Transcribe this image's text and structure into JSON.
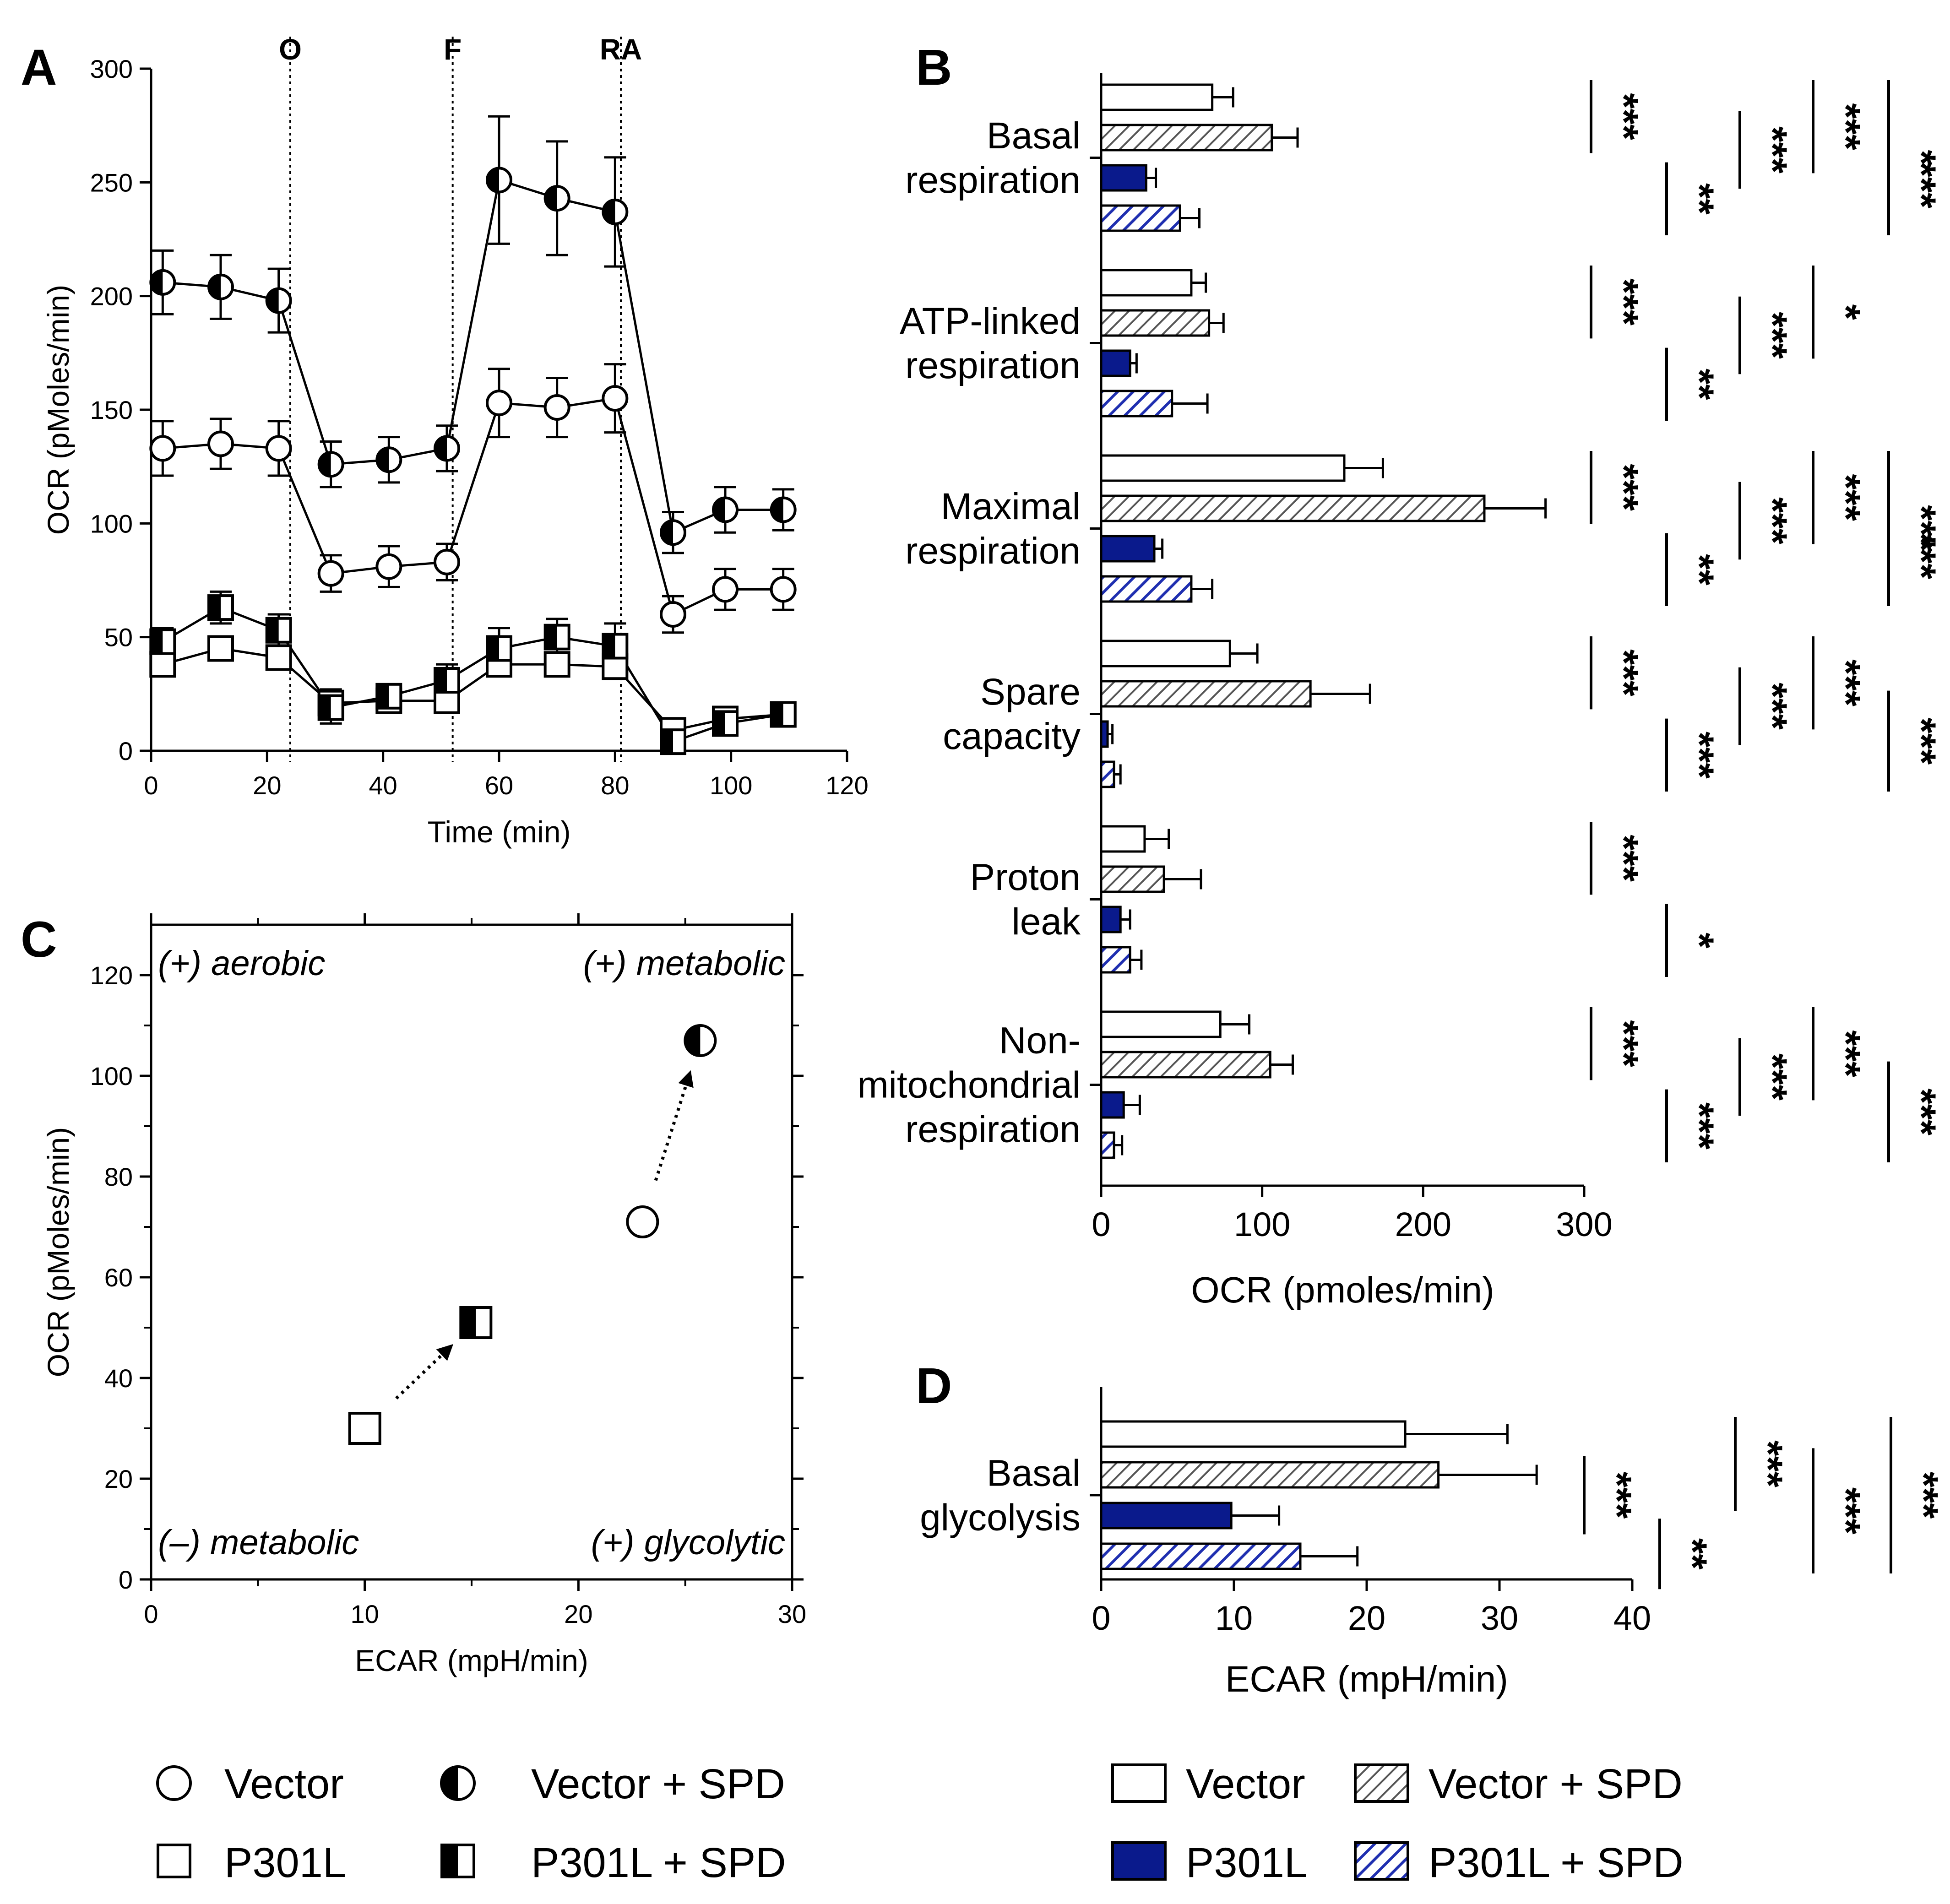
{
  "colors": {
    "vector": "#ffffff",
    "vector_spd": "hatched-gray",
    "p301l": "#0a1a8c",
    "p301l_spd": "hatched-blue",
    "line": "#000000"
  },
  "legend_left": {
    "vector": "Vector",
    "vector_spd": "Vector + SPD",
    "p301l": "P301L",
    "p301l_spd": "P301L + SPD"
  },
  "legend_right": {
    "vector": "Vector",
    "vector_spd": "Vector + SPD",
    "p301l": "P301L",
    "p301l_spd": "P301L + SPD"
  },
  "chart_data": [
    {
      "panel": "A",
      "type": "line",
      "xlabel": "Time (min)",
      "ylabel": "OCR (pMoles/min)",
      "xlim": [
        0,
        120
      ],
      "ylim": [
        0,
        300
      ],
      "xticks": [
        0,
        20,
        40,
        60,
        80,
        100,
        120
      ],
      "yticks": [
        0,
        50,
        100,
        150,
        200,
        250,
        300
      ],
      "injections": [
        {
          "label": "O",
          "x": 24
        },
        {
          "label": "F",
          "x": 52
        },
        {
          "label": "RA",
          "x": 81
        }
      ],
      "x": [
        2,
        12,
        22,
        31,
        41,
        51,
        60,
        70,
        80,
        90,
        99,
        109
      ],
      "series": [
        {
          "name": "Vector",
          "marker": "circle-open",
          "values": [
            133,
            135,
            133,
            78,
            81,
            83,
            153,
            151,
            155,
            60,
            71,
            71
          ],
          "err": [
            12,
            11,
            12,
            8,
            9,
            8,
            15,
            13,
            15,
            8,
            9,
            9
          ]
        },
        {
          "name": "Vector + SPD",
          "marker": "circle-half",
          "values": [
            206,
            204,
            198,
            126,
            128,
            133,
            251,
            243,
            237,
            96,
            106,
            106
          ],
          "err": [
            14,
            14,
            14,
            10,
            10,
            10,
            28,
            25,
            24,
            9,
            10,
            9
          ]
        },
        {
          "name": "P301L",
          "marker": "square-open",
          "values": [
            38,
            45,
            41,
            21,
            22,
            22,
            38,
            38,
            37,
            9,
            14,
            16
          ],
          "err": [
            4,
            4,
            4,
            6,
            4,
            4,
            5,
            5,
            5,
            5,
            4,
            3
          ]
        },
        {
          "name": "P301L + SPD",
          "marker": "square-half",
          "values": [
            48,
            63,
            53,
            19,
            24,
            31,
            45,
            50,
            46,
            4,
            12,
            16
          ],
          "err": [
            6,
            7,
            7,
            7,
            5,
            7,
            9,
            8,
            10,
            5,
            5,
            4
          ]
        }
      ]
    },
    {
      "panel": "B",
      "type": "bar",
      "orientation": "horizontal",
      "xlabel": "OCR (pmoles/min)",
      "xlim": [
        0,
        300
      ],
      "xticks": [
        0,
        100,
        200,
        300
      ],
      "categories": [
        [
          "Basal",
          "respiration"
        ],
        [
          "ATP-linked",
          "respiration"
        ],
        [
          "Maximal",
          "respiration"
        ],
        [
          "Spare",
          "capacity"
        ],
        [
          "Proton",
          "leak"
        ],
        [
          "Non-",
          "mitochondrial",
          "respiration"
        ]
      ],
      "series": [
        {
          "name": "Vector",
          "values": [
            69,
            56,
            151,
            80,
            27,
            74
          ],
          "err": [
            13,
            9,
            24,
            17,
            15,
            18
          ]
        },
        {
          "name": "Vector + SPD",
          "values": [
            106,
            67,
            238,
            130,
            39,
            105
          ],
          "err": [
            16,
            9,
            38,
            37,
            23,
            14
          ]
        },
        {
          "name": "P301L",
          "values": [
            28,
            18,
            33,
            4,
            12,
            14
          ],
          "err": [
            6,
            4,
            5,
            3,
            6,
            10
          ]
        },
        {
          "name": "P301L + SPD",
          "values": [
            49,
            44,
            56,
            8,
            18,
            8
          ],
          "err": [
            12,
            22,
            13,
            4,
            7,
            5
          ]
        }
      ],
      "significance": [
        [
          "***",
          "**",
          "***",
          "***",
          "***",
          "*"
        ],
        [
          "***",
          "**",
          "***",
          "*"
        ],
        [
          "***",
          "**",
          "***",
          "***",
          "***",
          "***"
        ],
        [
          "***",
          "***",
          "***",
          "***",
          "***"
        ],
        [
          "***",
          "*"
        ],
        [
          "***",
          "***",
          "***",
          "***",
          "***"
        ]
      ]
    },
    {
      "panel": "C",
      "type": "scatter",
      "xlabel": "ECAR (mpH/min)",
      "ylabel": "OCR (pMoles/min)",
      "xlim": [
        0,
        30
      ],
      "ylim": [
        0,
        130
      ],
      "xticks": [
        0,
        10,
        20,
        30
      ],
      "yticks": [
        0,
        20,
        40,
        60,
        80,
        100,
        120
      ],
      "quadrants": {
        "top_left": "(+) aerobic",
        "top_right": "(+) metabolic",
        "bottom_left": "(–) metabolic",
        "bottom_right": "(+) glycolytic"
      },
      "points": [
        {
          "name": "Vector",
          "marker": "circle-open",
          "x": 23,
          "y": 71
        },
        {
          "name": "Vector + SPD",
          "marker": "circle-half",
          "x": 25.7,
          "y": 107
        },
        {
          "name": "P301L",
          "marker": "square-open",
          "x": 10,
          "y": 30
        },
        {
          "name": "P301L + SPD",
          "marker": "square-half",
          "x": 15.2,
          "y": 51
        }
      ],
      "arrows": [
        {
          "from": "Vector",
          "to": "Vector + SPD"
        },
        {
          "from": "P301L",
          "to": "P301L + SPD"
        }
      ]
    },
    {
      "panel": "D",
      "type": "bar",
      "orientation": "horizontal",
      "xlabel": "ECAR (mpH/min)",
      "xlim": [
        0,
        40
      ],
      "xticks": [
        0,
        10,
        20,
        30,
        40
      ],
      "categories": [
        [
          "Basal",
          "glycolysis"
        ]
      ],
      "series": [
        {
          "name": "Vector",
          "values": [
            22.9
          ],
          "err": [
            7.7
          ]
        },
        {
          "name": "Vector + SPD",
          "values": [
            25.4
          ],
          "err": [
            7.4
          ]
        },
        {
          "name": "P301L",
          "values": [
            9.8
          ],
          "err": [
            3.6
          ]
        },
        {
          "name": "P301L + SPD",
          "values": [
            15.0
          ],
          "err": [
            4.3
          ]
        }
      ],
      "significance": [
        [
          "***",
          "**",
          "***",
          "***",
          "***"
        ]
      ]
    }
  ]
}
